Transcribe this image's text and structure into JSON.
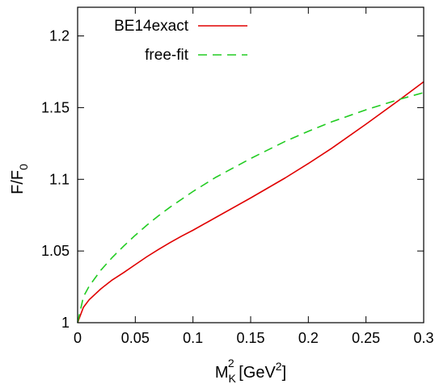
{
  "chart_data": {
    "type": "line",
    "xlabel": {
      "main": "M",
      "sub": "K",
      "sup": "2",
      "unit_pre": " [GeV",
      "unit_sup": "2",
      "unit_post": "]"
    },
    "ylabel": {
      "main": "F/F",
      "sub": "0"
    },
    "xlim": [
      0,
      0.3
    ],
    "ylim": [
      1,
      1.22
    ],
    "x_ticks": [
      0,
      0.05,
      0.1,
      0.15,
      0.2,
      0.25,
      0.3
    ],
    "x_tick_labels": [
      "0",
      "0.05",
      "0.1",
      "0.15",
      "0.2",
      "0.25",
      "0.3"
    ],
    "y_ticks": [
      1,
      1.05,
      1.1,
      1.15,
      1.2
    ],
    "y_tick_labels": [
      "1",
      "1.05",
      "1.1",
      "1.15",
      "1.2"
    ],
    "grid": false,
    "legend_position": "top-left",
    "series": [
      {
        "name": "BE14exact",
        "color": "#e00000",
        "dash": "solid",
        "x": [
          0,
          0.005,
          0.01,
          0.02,
          0.03,
          0.04,
          0.05,
          0.06,
          0.07,
          0.08,
          0.09,
          0.1,
          0.12,
          0.15,
          0.18,
          0.2,
          0.22,
          0.25,
          0.28,
          0.3
        ],
        "y": [
          1.0,
          1.0107,
          1.016,
          1.0235,
          1.0298,
          1.035,
          1.0405,
          1.046,
          1.051,
          1.0558,
          1.0603,
          1.0645,
          1.0735,
          1.087,
          1.101,
          1.111,
          1.1215,
          1.1385,
          1.156,
          1.168
        ]
      },
      {
        "name": "free-fit",
        "color": "#22cc22",
        "dash": "dashed",
        "x": [
          0,
          0.005,
          0.01,
          0.02,
          0.03,
          0.04,
          0.05,
          0.06,
          0.07,
          0.08,
          0.1,
          0.12,
          0.15,
          0.18,
          0.2,
          0.22,
          0.25,
          0.28,
          0.3
        ],
        "y": [
          1.0,
          1.018,
          1.0255,
          1.0365,
          1.0455,
          1.0535,
          1.061,
          1.068,
          1.0745,
          1.0805,
          1.0915,
          1.1015,
          1.1145,
          1.1265,
          1.1335,
          1.14,
          1.1485,
          1.156,
          1.1605
        ]
      }
    ]
  }
}
